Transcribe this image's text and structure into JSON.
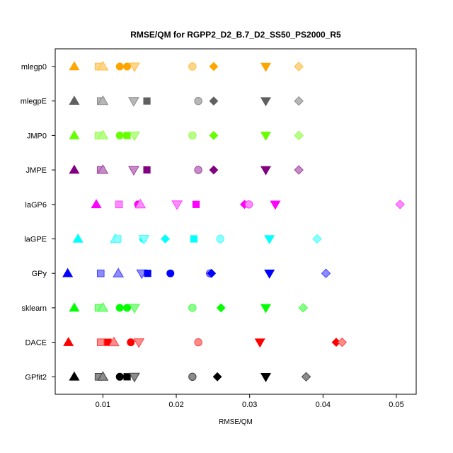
{
  "chart_data": {
    "type": "scatter",
    "title": "RMSE/QM for RGPP2_D2_B.7_D2_SS50_PS2000_R5",
    "xlabel": "RMSE/QM",
    "ylabel": "",
    "xlim": [
      0.0035,
      0.0527
    ],
    "x_ticks": [
      0.01,
      0.02,
      0.03,
      0.04,
      0.05
    ],
    "x_tick_labels": [
      "0.01",
      "0.02",
      "0.03",
      "0.04",
      "0.05"
    ],
    "grid": false,
    "categories": [
      "mlegp0",
      "mlegpE",
      "JMP0",
      "JMPE",
      "laGP6",
      "laGPE",
      "GPy",
      "sklearn",
      "DACE",
      "GPfit2"
    ],
    "series": [
      {
        "category": "mlegp0",
        "color": "#FFA500",
        "points": [
          {
            "x": 0.0061,
            "shape": "triangle",
            "fill": "solid"
          },
          {
            "x": 0.0094,
            "shape": "square",
            "fill": "light"
          },
          {
            "x": 0.01,
            "shape": "triangle",
            "fill": "light"
          },
          {
            "x": 0.0123,
            "shape": "circle",
            "fill": "solid"
          },
          {
            "x": 0.0133,
            "shape": "circle",
            "fill": "solid"
          },
          {
            "x": 0.0143,
            "shape": "triangle-down",
            "fill": "light"
          },
          {
            "x": 0.0222,
            "shape": "circle",
            "fill": "light"
          },
          {
            "x": 0.0251,
            "shape": "diamond",
            "fill": "solid"
          },
          {
            "x": 0.0322,
            "shape": "triangle-down",
            "fill": "solid"
          },
          {
            "x": 0.0367,
            "shape": "diamond",
            "fill": "light"
          }
        ]
      },
      {
        "category": "mlegpE",
        "color": "#606060",
        "points": [
          {
            "x": 0.0061,
            "shape": "triangle",
            "fill": "solid"
          },
          {
            "x": 0.0097,
            "shape": "square",
            "fill": "light"
          },
          {
            "x": 0.01,
            "shape": "triangle",
            "fill": "light"
          },
          {
            "x": 0.0142,
            "shape": "triangle-down",
            "fill": "light"
          },
          {
            "x": 0.016,
            "shape": "square",
            "fill": "solid"
          },
          {
            "x": 0.023,
            "shape": "circle",
            "fill": "light"
          },
          {
            "x": 0.0251,
            "shape": "diamond",
            "fill": "solid"
          },
          {
            "x": 0.0322,
            "shape": "triangle-down",
            "fill": "solid"
          },
          {
            "x": 0.0367,
            "shape": "diamond",
            "fill": "light"
          }
        ]
      },
      {
        "category": "JMP0",
        "color": "#66FF00",
        "points": [
          {
            "x": 0.0061,
            "shape": "triangle",
            "fill": "solid"
          },
          {
            "x": 0.0094,
            "shape": "square",
            "fill": "light"
          },
          {
            "x": 0.01,
            "shape": "triangle",
            "fill": "light"
          },
          {
            "x": 0.0123,
            "shape": "circle",
            "fill": "solid"
          },
          {
            "x": 0.0133,
            "shape": "square",
            "fill": "solid"
          },
          {
            "x": 0.0143,
            "shape": "triangle-down",
            "fill": "light"
          },
          {
            "x": 0.0222,
            "shape": "circle",
            "fill": "light"
          },
          {
            "x": 0.0251,
            "shape": "diamond",
            "fill": "solid"
          },
          {
            "x": 0.0322,
            "shape": "triangle-down",
            "fill": "solid"
          },
          {
            "x": 0.0367,
            "shape": "diamond",
            "fill": "light"
          }
        ]
      },
      {
        "category": "JMPE",
        "color": "#800080",
        "points": [
          {
            "x": 0.0061,
            "shape": "triangle",
            "fill": "solid"
          },
          {
            "x": 0.0097,
            "shape": "square",
            "fill": "light"
          },
          {
            "x": 0.01,
            "shape": "triangle",
            "fill": "light"
          },
          {
            "x": 0.0142,
            "shape": "triangle-down",
            "fill": "light"
          },
          {
            "x": 0.016,
            "shape": "square",
            "fill": "solid"
          },
          {
            "x": 0.023,
            "shape": "circle",
            "fill": "light"
          },
          {
            "x": 0.0251,
            "shape": "diamond",
            "fill": "solid"
          },
          {
            "x": 0.0322,
            "shape": "triangle-down",
            "fill": "solid"
          },
          {
            "x": 0.0367,
            "shape": "diamond",
            "fill": "light"
          }
        ]
      },
      {
        "category": "laGP6",
        "color": "#FF00FF",
        "points": [
          {
            "x": 0.0091,
            "shape": "triangle",
            "fill": "solid"
          },
          {
            "x": 0.0122,
            "shape": "square",
            "fill": "light"
          },
          {
            "x": 0.0148,
            "shape": "circle",
            "fill": "solid"
          },
          {
            "x": 0.0151,
            "shape": "triangle",
            "fill": "light"
          },
          {
            "x": 0.0201,
            "shape": "triangle-down",
            "fill": "light"
          },
          {
            "x": 0.0227,
            "shape": "square",
            "fill": "solid"
          },
          {
            "x": 0.0293,
            "shape": "diamond",
            "fill": "solid"
          },
          {
            "x": 0.0299,
            "shape": "circle",
            "fill": "light"
          },
          {
            "x": 0.0335,
            "shape": "triangle-down",
            "fill": "solid"
          },
          {
            "x": 0.0505,
            "shape": "diamond",
            "fill": "light"
          }
        ]
      },
      {
        "category": "laGPE",
        "color": "#00FFFF",
        "points": [
          {
            "x": 0.0066,
            "shape": "triangle",
            "fill": "solid"
          },
          {
            "x": 0.0117,
            "shape": "triangle",
            "fill": "light"
          },
          {
            "x": 0.012,
            "shape": "square",
            "fill": "light"
          },
          {
            "x": 0.0155,
            "shape": "circle",
            "fill": "solid"
          },
          {
            "x": 0.0156,
            "shape": "triangle-down",
            "fill": "light"
          },
          {
            "x": 0.0185,
            "shape": "diamond",
            "fill": "solid"
          },
          {
            "x": 0.0224,
            "shape": "square",
            "fill": "solid"
          },
          {
            "x": 0.026,
            "shape": "circle",
            "fill": "light"
          },
          {
            "x": 0.0327,
            "shape": "triangle-down",
            "fill": "solid"
          },
          {
            "x": 0.0392,
            "shape": "diamond",
            "fill": "light"
          }
        ]
      },
      {
        "category": "GPy",
        "color": "#0000FF",
        "points": [
          {
            "x": 0.0052,
            "shape": "triangle",
            "fill": "solid"
          },
          {
            "x": 0.0097,
            "shape": "square",
            "fill": "light"
          },
          {
            "x": 0.0121,
            "shape": "triangle",
            "fill": "light"
          },
          {
            "x": 0.0153,
            "shape": "triangle-down",
            "fill": "light"
          },
          {
            "x": 0.0161,
            "shape": "square",
            "fill": "solid"
          },
          {
            "x": 0.0192,
            "shape": "circle",
            "fill": "solid"
          },
          {
            "x": 0.0246,
            "shape": "circle",
            "fill": "light"
          },
          {
            "x": 0.0248,
            "shape": "diamond",
            "fill": "solid"
          },
          {
            "x": 0.0327,
            "shape": "triangle-down",
            "fill": "solid"
          },
          {
            "x": 0.0404,
            "shape": "diamond",
            "fill": "light"
          }
        ]
      },
      {
        "category": "sklearn",
        "color": "#00FF00",
        "points": [
          {
            "x": 0.0061,
            "shape": "triangle",
            "fill": "solid"
          },
          {
            "x": 0.0094,
            "shape": "square",
            "fill": "light"
          },
          {
            "x": 0.01,
            "shape": "triangle",
            "fill": "light"
          },
          {
            "x": 0.0123,
            "shape": "circle",
            "fill": "solid"
          },
          {
            "x": 0.0133,
            "shape": "circle",
            "fill": "solid"
          },
          {
            "x": 0.0143,
            "shape": "triangle-down",
            "fill": "light"
          },
          {
            "x": 0.0222,
            "shape": "circle",
            "fill": "light"
          },
          {
            "x": 0.0261,
            "shape": "diamond",
            "fill": "solid"
          },
          {
            "x": 0.0322,
            "shape": "triangle-down",
            "fill": "solid"
          },
          {
            "x": 0.0373,
            "shape": "diamond",
            "fill": "light"
          }
        ]
      },
      {
        "category": "DACE",
        "color": "#FF0000",
        "points": [
          {
            "x": 0.0053,
            "shape": "triangle",
            "fill": "solid"
          },
          {
            "x": 0.0097,
            "shape": "square",
            "fill": "light"
          },
          {
            "x": 0.0107,
            "shape": "square",
            "fill": "solid"
          },
          {
            "x": 0.0115,
            "shape": "triangle",
            "fill": "light"
          },
          {
            "x": 0.0138,
            "shape": "circle",
            "fill": "solid"
          },
          {
            "x": 0.0149,
            "shape": "triangle-down",
            "fill": "light"
          },
          {
            "x": 0.023,
            "shape": "circle",
            "fill": "light"
          },
          {
            "x": 0.0314,
            "shape": "triangle-down",
            "fill": "solid"
          },
          {
            "x": 0.0418,
            "shape": "diamond",
            "fill": "solid"
          },
          {
            "x": 0.0426,
            "shape": "diamond",
            "fill": "light"
          }
        ]
      },
      {
        "category": "GPfit2",
        "color": "#000000",
        "points": [
          {
            "x": 0.0061,
            "shape": "triangle",
            "fill": "solid"
          },
          {
            "x": 0.0094,
            "shape": "square",
            "fill": "light"
          },
          {
            "x": 0.01,
            "shape": "triangle",
            "fill": "light"
          },
          {
            "x": 0.0123,
            "shape": "circle",
            "fill": "solid"
          },
          {
            "x": 0.0133,
            "shape": "square",
            "fill": "solid"
          },
          {
            "x": 0.0143,
            "shape": "triangle-down",
            "fill": "light"
          },
          {
            "x": 0.0222,
            "shape": "circle",
            "fill": "light"
          },
          {
            "x": 0.0256,
            "shape": "diamond",
            "fill": "solid"
          },
          {
            "x": 0.0322,
            "shape": "triangle-down",
            "fill": "solid"
          },
          {
            "x": 0.0377,
            "shape": "diamond",
            "fill": "light"
          }
        ]
      }
    ]
  }
}
